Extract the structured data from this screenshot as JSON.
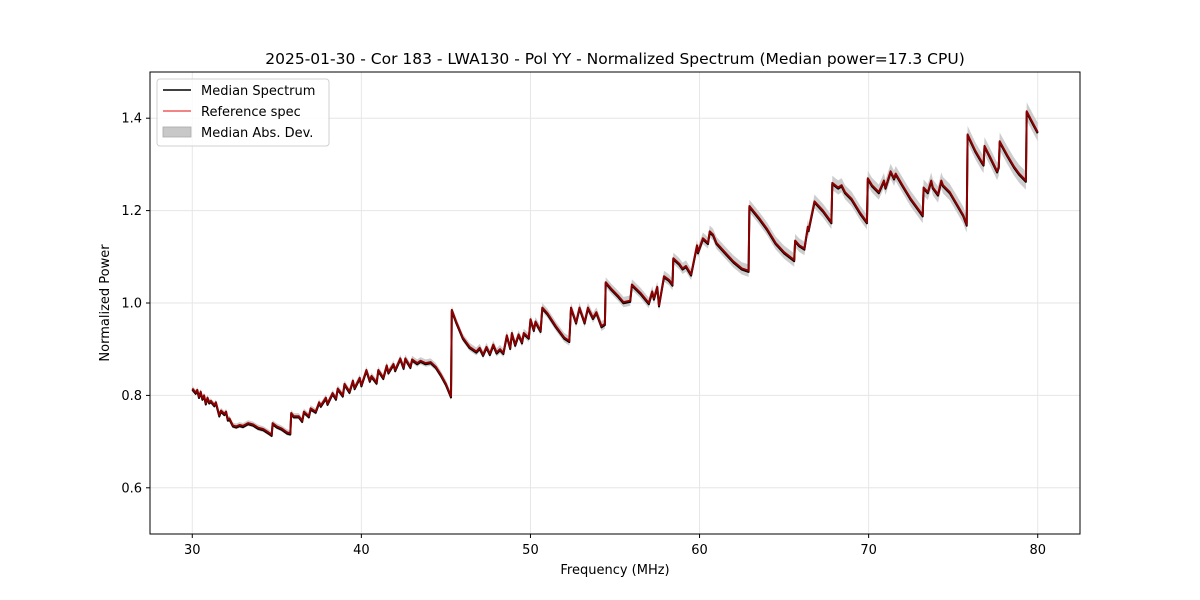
{
  "chart_data": {
    "type": "line",
    "title": "2025-01-30 - Cor 183 - LWA130 - Pol YY - Normalized Spectrum (Median power=17.3 CPU)",
    "xlabel": "Frequency (MHz)",
    "ylabel": "Normalized Power",
    "xlim": [
      27.5,
      82.5
    ],
    "ylim": [
      0.5,
      1.5
    ],
    "xticks": [
      30,
      40,
      50,
      60,
      70,
      80
    ],
    "xtick_labels": [
      "30",
      "40",
      "50",
      "60",
      "70",
      "80"
    ],
    "yticks": [
      0.6,
      0.8,
      1.0,
      1.2,
      1.4
    ],
    "ytick_labels": [
      "0.6",
      "0.8",
      "1.0",
      "1.2",
      "1.4"
    ],
    "grid": true,
    "legend_position": "top-left",
    "legend": [
      {
        "label": "Median Spectrum",
        "kind": "line",
        "color": "#000000"
      },
      {
        "label": "Reference spec",
        "kind": "line",
        "color": "#f05a5a"
      },
      {
        "label": "Median Abs. Dev.",
        "kind": "band",
        "color": "#c8c8c8"
      }
    ],
    "colors": {
      "median": "#000000",
      "reference": "#8b0000",
      "mad_band": "#c8c8c8",
      "grid": "#e6e6e6"
    },
    "mad_halfwidth_low": 0.006,
    "mad_halfwidth_high": 0.02,
    "series": [
      {
        "name": "Median Spectrum",
        "x": [
          30.0,
          30.2,
          30.3,
          30.4,
          30.5,
          30.6,
          30.7,
          30.8,
          30.9,
          31.0,
          31.1,
          31.3,
          31.4,
          31.6,
          31.7,
          31.9,
          32.0,
          32.1,
          32.2,
          32.4,
          32.6,
          32.8,
          33.0,
          33.3,
          33.6,
          33.9,
          34.2,
          34.5,
          34.7,
          34.75,
          35.0,
          35.3,
          35.6,
          35.8,
          35.85,
          36.0,
          36.3,
          36.5,
          36.6,
          36.9,
          37.0,
          37.3,
          37.5,
          37.6,
          37.9,
          38.0,
          38.3,
          38.5,
          38.6,
          38.9,
          39.0,
          39.3,
          39.5,
          39.6,
          39.9,
          40.0,
          40.3,
          40.5,
          40.6,
          40.9,
          41.0,
          41.3,
          41.5,
          41.6,
          41.9,
          42.0,
          42.3,
          42.5,
          42.6,
          42.9,
          43.0,
          43.3,
          43.5,
          43.8,
          44.1,
          44.4,
          44.7,
          45.0,
          45.3,
          45.35,
          45.6,
          46.0,
          46.4,
          46.8,
          47.0,
          47.2,
          47.4,
          47.6,
          47.8,
          48.0,
          48.2,
          48.4,
          48.6,
          48.8,
          48.9,
          49.1,
          49.3,
          49.5,
          49.6,
          49.9,
          50.0,
          50.2,
          50.3,
          50.6,
          50.7,
          51.0,
          51.5,
          52.0,
          52.3,
          52.4,
          52.7,
          52.9,
          53.2,
          53.4,
          53.7,
          53.9,
          54.2,
          54.4,
          54.45,
          54.8,
          55.2,
          55.5,
          55.9,
          56.0,
          56.5,
          57.0,
          57.2,
          57.3,
          57.5,
          57.6,
          57.9,
          58.2,
          58.4,
          58.45,
          58.8,
          59.0,
          59.2,
          59.5,
          59.85,
          59.9,
          60.2,
          60.5,
          60.6,
          60.8,
          61.0,
          61.5,
          62.0,
          62.5,
          62.9,
          62.95,
          63.5,
          64.0,
          64.5,
          65.0,
          65.6,
          65.65,
          65.9,
          66.2,
          66.4,
          66.45,
          66.8,
          67.3,
          67.8,
          67.85,
          68.2,
          68.4,
          68.6,
          69.0,
          69.5,
          69.9,
          69.95,
          70.2,
          70.6,
          70.9,
          71.0,
          71.3,
          71.5,
          71.6,
          72.0,
          72.5,
          73.0,
          73.2,
          73.25,
          73.5,
          73.7,
          73.8,
          74.1,
          74.3,
          74.4,
          74.8,
          75.2,
          75.6,
          75.8,
          75.85,
          76.3,
          76.7,
          76.8,
          76.85,
          77.2,
          77.6,
          77.7,
          77.75,
          78.2,
          78.6,
          78.9,
          79.3,
          79.35,
          79.7,
          80.0
        ],
        "values": [
          0.815,
          0.806,
          0.812,
          0.797,
          0.808,
          0.793,
          0.8,
          0.783,
          0.795,
          0.785,
          0.788,
          0.779,
          0.785,
          0.757,
          0.767,
          0.76,
          0.765,
          0.748,
          0.75,
          0.735,
          0.733,
          0.736,
          0.734,
          0.74,
          0.737,
          0.73,
          0.727,
          0.72,
          0.715,
          0.74,
          0.733,
          0.728,
          0.72,
          0.718,
          0.762,
          0.755,
          0.755,
          0.745,
          0.765,
          0.755,
          0.772,
          0.765,
          0.785,
          0.778,
          0.795,
          0.782,
          0.805,
          0.793,
          0.815,
          0.8,
          0.825,
          0.808,
          0.832,
          0.816,
          0.838,
          0.822,
          0.855,
          0.832,
          0.842,
          0.828,
          0.855,
          0.838,
          0.865,
          0.85,
          0.868,
          0.855,
          0.88,
          0.86,
          0.88,
          0.862,
          0.878,
          0.87,
          0.875,
          0.87,
          0.872,
          0.862,
          0.845,
          0.825,
          0.798,
          0.985,
          0.96,
          0.925,
          0.905,
          0.895,
          0.903,
          0.888,
          0.905,
          0.89,
          0.91,
          0.893,
          0.9,
          0.892,
          0.93,
          0.903,
          0.935,
          0.91,
          0.932,
          0.915,
          0.935,
          0.925,
          0.965,
          0.942,
          0.96,
          0.94,
          0.99,
          0.978,
          0.95,
          0.925,
          0.918,
          0.99,
          0.958,
          0.99,
          0.958,
          0.99,
          0.968,
          0.98,
          0.95,
          0.955,
          1.045,
          1.03,
          1.015,
          1.002,
          1.005,
          1.04,
          1.022,
          1.0,
          1.025,
          1.01,
          1.035,
          0.995,
          1.058,
          1.05,
          1.04,
          1.097,
          1.085,
          1.075,
          1.08,
          1.062,
          1.125,
          1.11,
          1.14,
          1.13,
          1.155,
          1.148,
          1.13,
          1.11,
          1.09,
          1.075,
          1.07,
          1.21,
          1.185,
          1.16,
          1.13,
          1.11,
          1.093,
          1.135,
          1.125,
          1.118,
          1.165,
          1.158,
          1.22,
          1.2,
          1.175,
          1.26,
          1.25,
          1.255,
          1.24,
          1.225,
          1.195,
          1.175,
          1.27,
          1.255,
          1.24,
          1.265,
          1.25,
          1.285,
          1.27,
          1.28,
          1.255,
          1.225,
          1.2,
          1.19,
          1.25,
          1.24,
          1.265,
          1.25,
          1.235,
          1.265,
          1.255,
          1.24,
          1.215,
          1.19,
          1.17,
          1.365,
          1.33,
          1.305,
          1.3,
          1.34,
          1.315,
          1.285,
          1.295,
          1.35,
          1.32,
          1.295,
          1.28,
          1.265,
          1.415,
          1.39,
          1.37
        ]
      },
      {
        "name": "Reference spec",
        "same_x_as": "Median Spectrum",
        "note": "closely tracks median spectrum"
      }
    ]
  }
}
